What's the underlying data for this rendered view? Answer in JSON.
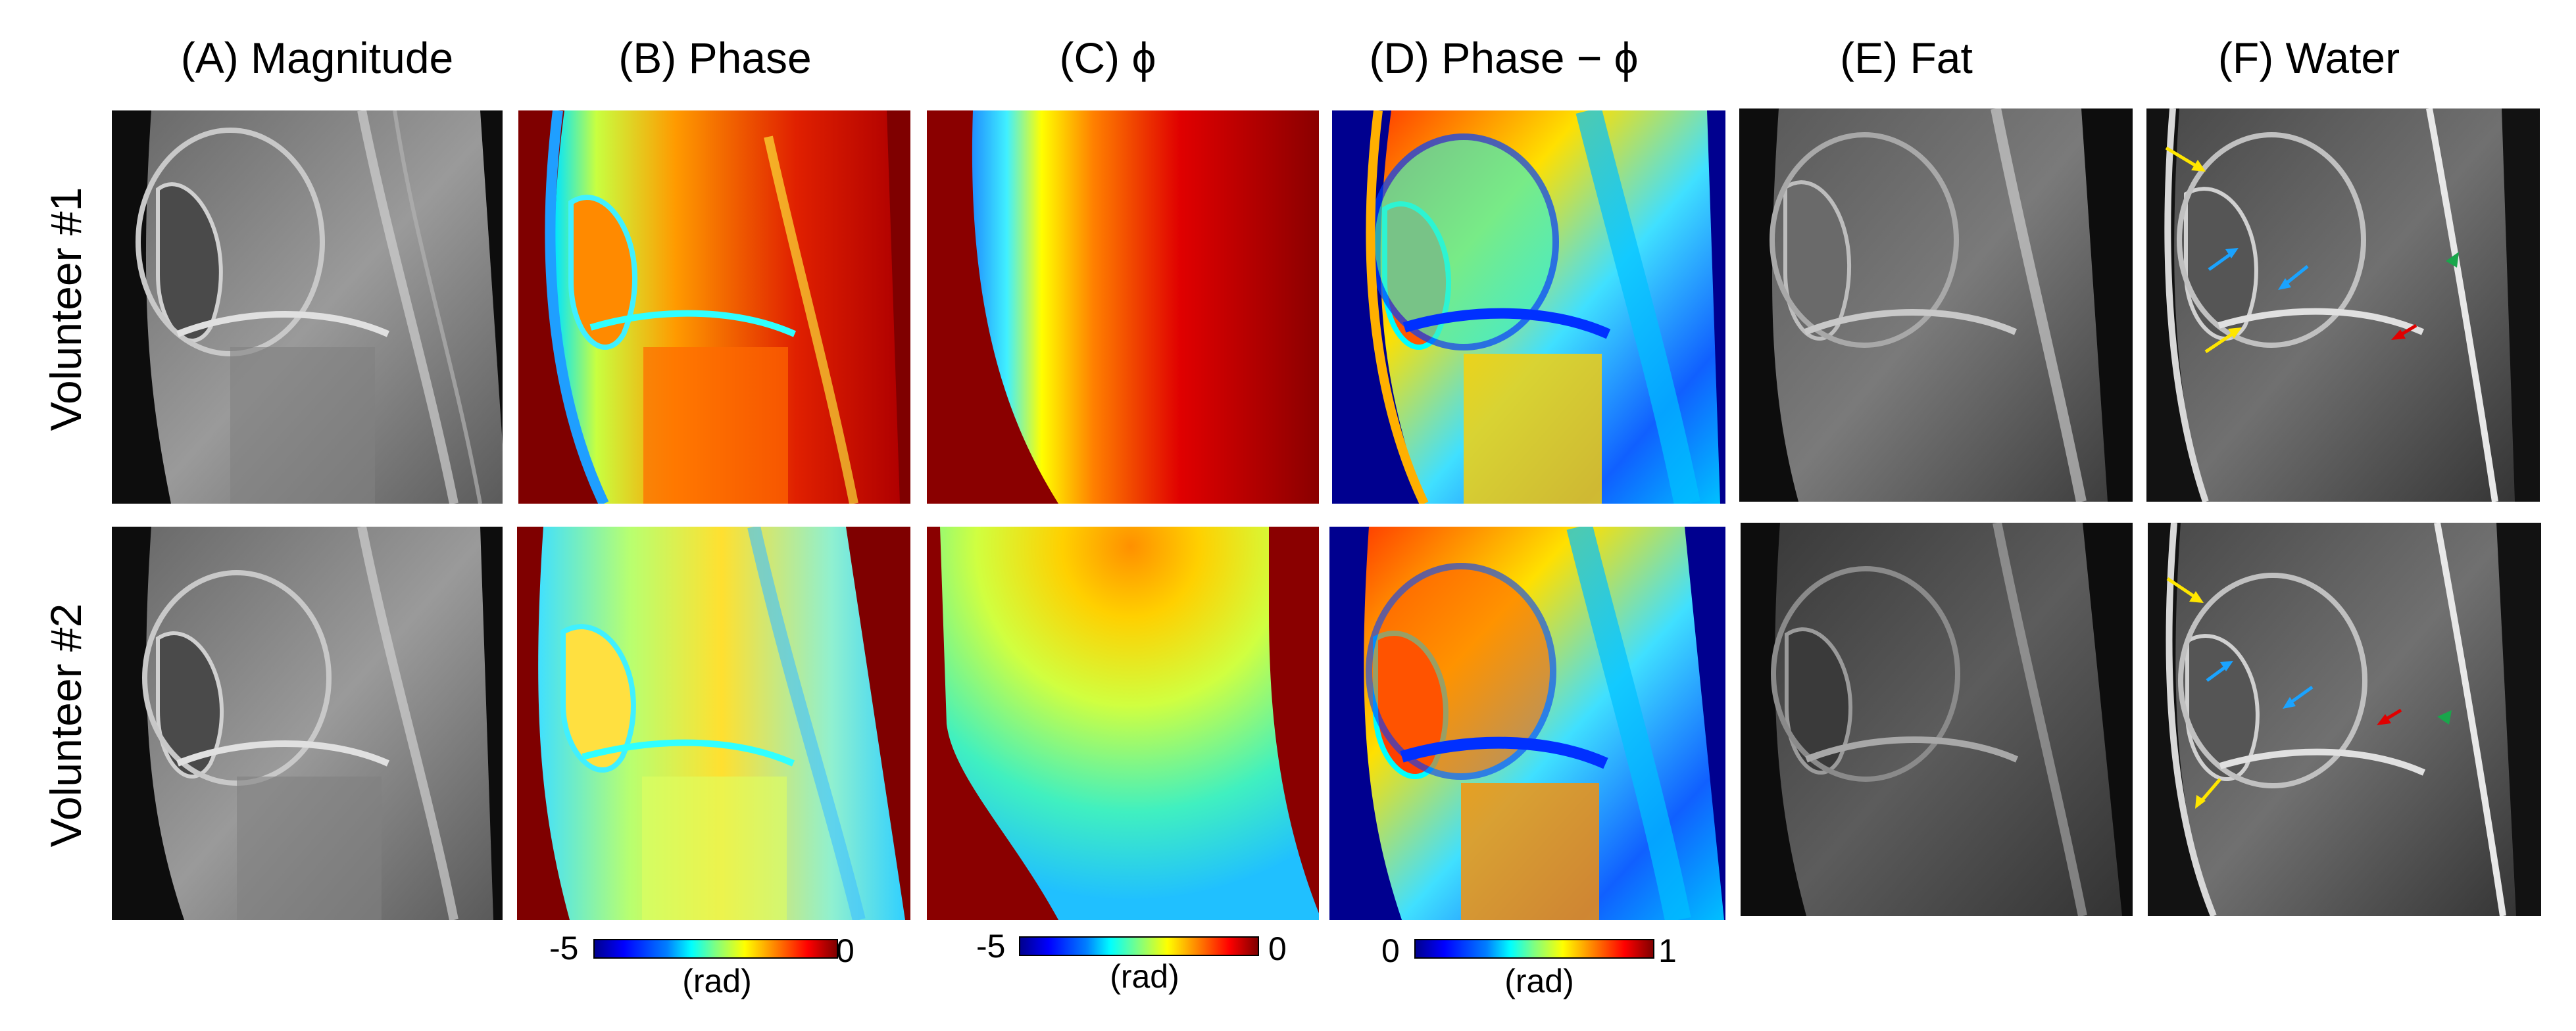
{
  "columns": {
    "a": "(A) Magnitude",
    "b": "(B) Phase",
    "c": "(C) ϕ",
    "d": "(D) Phase − ϕ",
    "e": "(E) Fat",
    "f": "(F) Water"
  },
  "rows": {
    "r1": "Volunteer #1",
    "r2": "Volunteer #2"
  },
  "colorbars": {
    "b": {
      "min": "-5",
      "max": "0",
      "unit": "(rad)"
    },
    "c": {
      "min": "-5",
      "max": "0",
      "unit": "(rad)"
    },
    "d": {
      "min": "0",
      "max": "1",
      "unit": "(rad)"
    }
  },
  "colors": {
    "phase_background": "#7f0000",
    "diff_background": "#00008f",
    "arrow_yellow": "#ffe600",
    "arrow_blue": "#1aa3ff",
    "arrow_red": "#e00000",
    "arrow_green": "#19a64b"
  },
  "icons": [
    "yellow-arrow-icon",
    "blue-arrow-icon",
    "red-arrow-icon",
    "green-arrowhead-icon"
  ]
}
